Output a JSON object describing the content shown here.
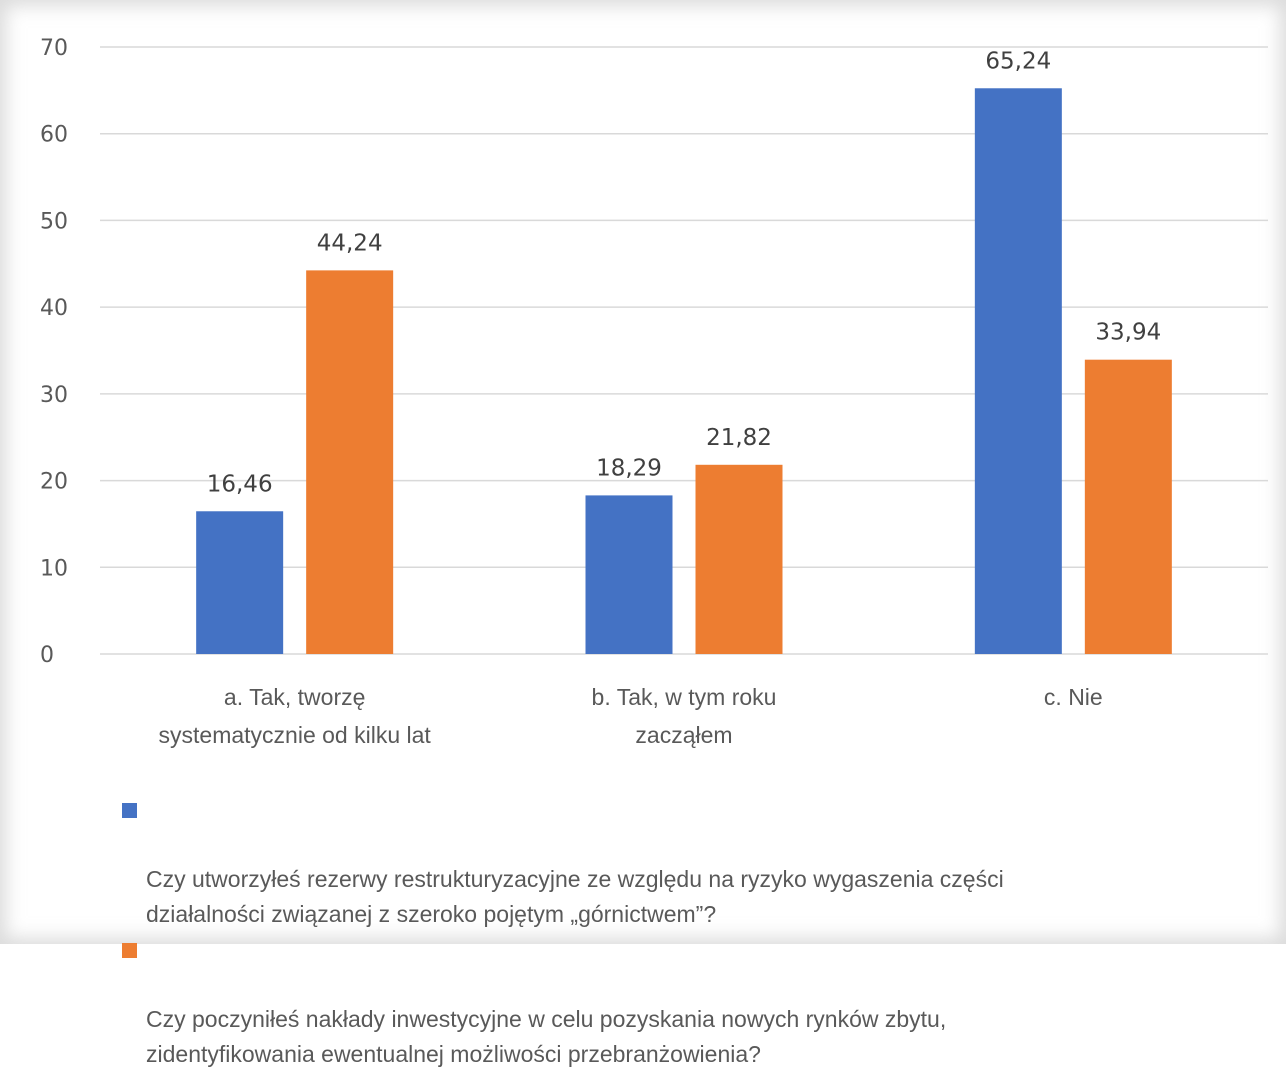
{
  "chart_data": {
    "type": "bar",
    "categories": [
      "a.    Tak, tworzę systematycznie od kilku lat",
      "b.    Tak, w tym roku zacząłem",
      "c.    Nie"
    ],
    "category_lines": [
      [
        "a.      Tak, tworzę",
        "systematycznie od kilku lat"
      ],
      [
        "b.      Tak, w tym roku",
        "zacząłem"
      ],
      [
        "c.      Nie"
      ]
    ],
    "series": [
      {
        "name": "Czy utworzyłeś rezerwy restrukturyzacyjne ze względu na ryzyko wygaszenia części działalności związanej z szeroko pojętym „górnictwem”?",
        "name_lines": "Czy utworzyłeś rezerwy restrukturyzacyjne ze względu na ryzyko wygaszenia części\ndziałalności związanej z szeroko pojętym „górnictwem”?",
        "values": [
          16.46,
          18.29,
          65.24
        ],
        "value_labels": [
          "16,46",
          "18,29",
          "65,24"
        ],
        "color": "#4472C4"
      },
      {
        "name": "Czy poczyniłeś nakłady inwestycyjne w celu pozyskania nowych rynków zbytu, zidentyfikowania ewentualnej możliwości przebranżowienia?",
        "name_lines": "Czy poczyniłeś nakłady inwestycyjne w celu pozyskania nowych rynków zbytu,\nzidentyfikowania ewentualnej możliwości przebranżowienia?",
        "values": [
          44.24,
          21.82,
          33.94
        ],
        "value_labels": [
          "44,24",
          "21,82",
          "33,94"
        ],
        "color": "#ED7D31"
      }
    ],
    "title": "",
    "xlabel": "",
    "ylabel": "",
    "ylim": [
      0,
      70
    ],
    "yticks": [
      0,
      10,
      20,
      30,
      40,
      50,
      60,
      70
    ],
    "grid": true,
    "legend_position": "bottom",
    "gridline_color": "#D9D9D9"
  }
}
